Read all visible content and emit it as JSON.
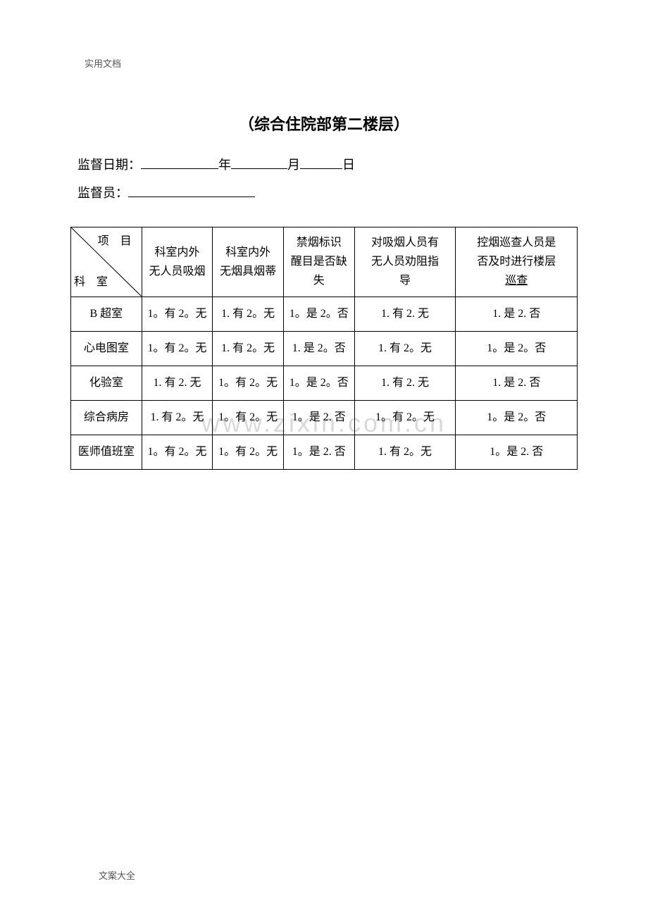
{
  "header_tag": "实用文档",
  "footer_tag": "文案大全",
  "title": "（综合住院部第二楼层）",
  "supervise_date_label": "监督日期：",
  "year_label": "年",
  "month_label": "月",
  "day_label": "日",
  "supervisor_label": "监督员：",
  "watermark": "www.zixin.com.cn",
  "diag_top": "项 目",
  "diag_bottom": "科 室",
  "headers": [
    "科室内外\n无人员吸烟",
    "科室内外\n无烟具烟蒂",
    "禁烟标识\n醒目是否缺\n失",
    "对吸烟人员有\n无人员劝阻指\n导",
    "控烟巡查人员是\n否及时进行楼层"
  ],
  "last_header_underline": "巡查",
  "rows": [
    {
      "dept": "B 超室",
      "cells": [
        "1。有 2。无",
        "1. 有 2。无",
        "1。是 2。否",
        "1. 有 2. 无",
        "1. 是 2. 否"
      ]
    },
    {
      "dept": "心电图室",
      "cells": [
        "1。有 2。无",
        "1. 有 2。无",
        "1. 是 2。否",
        "1. 有 2。无",
        "1。是 2。否"
      ]
    },
    {
      "dept": "化验室",
      "cells": [
        "1. 有 2. 无",
        "1。有 2。无",
        "1。是 2。否",
        "1. 有 2. 无",
        "1. 是 2. 否"
      ]
    },
    {
      "dept": "综合病房",
      "cells": [
        "1. 有 2。无",
        "1。有 2。无",
        "1。是 2. 否",
        "1。有 2。无",
        "1。是 2。否"
      ]
    },
    {
      "dept": "医师值班室",
      "cells": [
        "1。有 2。无",
        "1。有 2。无",
        "1。是 2. 否",
        "1. 有 2。无",
        "1。是 2. 否"
      ]
    }
  ],
  "colors": {
    "text": "#000000",
    "border": "#000000",
    "watermark": "#d9d9d9",
    "header_tag": "#555555",
    "background": "#ffffff"
  },
  "fonts": {
    "body": "SimSun",
    "title_size_pt": 16,
    "cell_size_pt": 12,
    "tag_size_pt": 10
  }
}
